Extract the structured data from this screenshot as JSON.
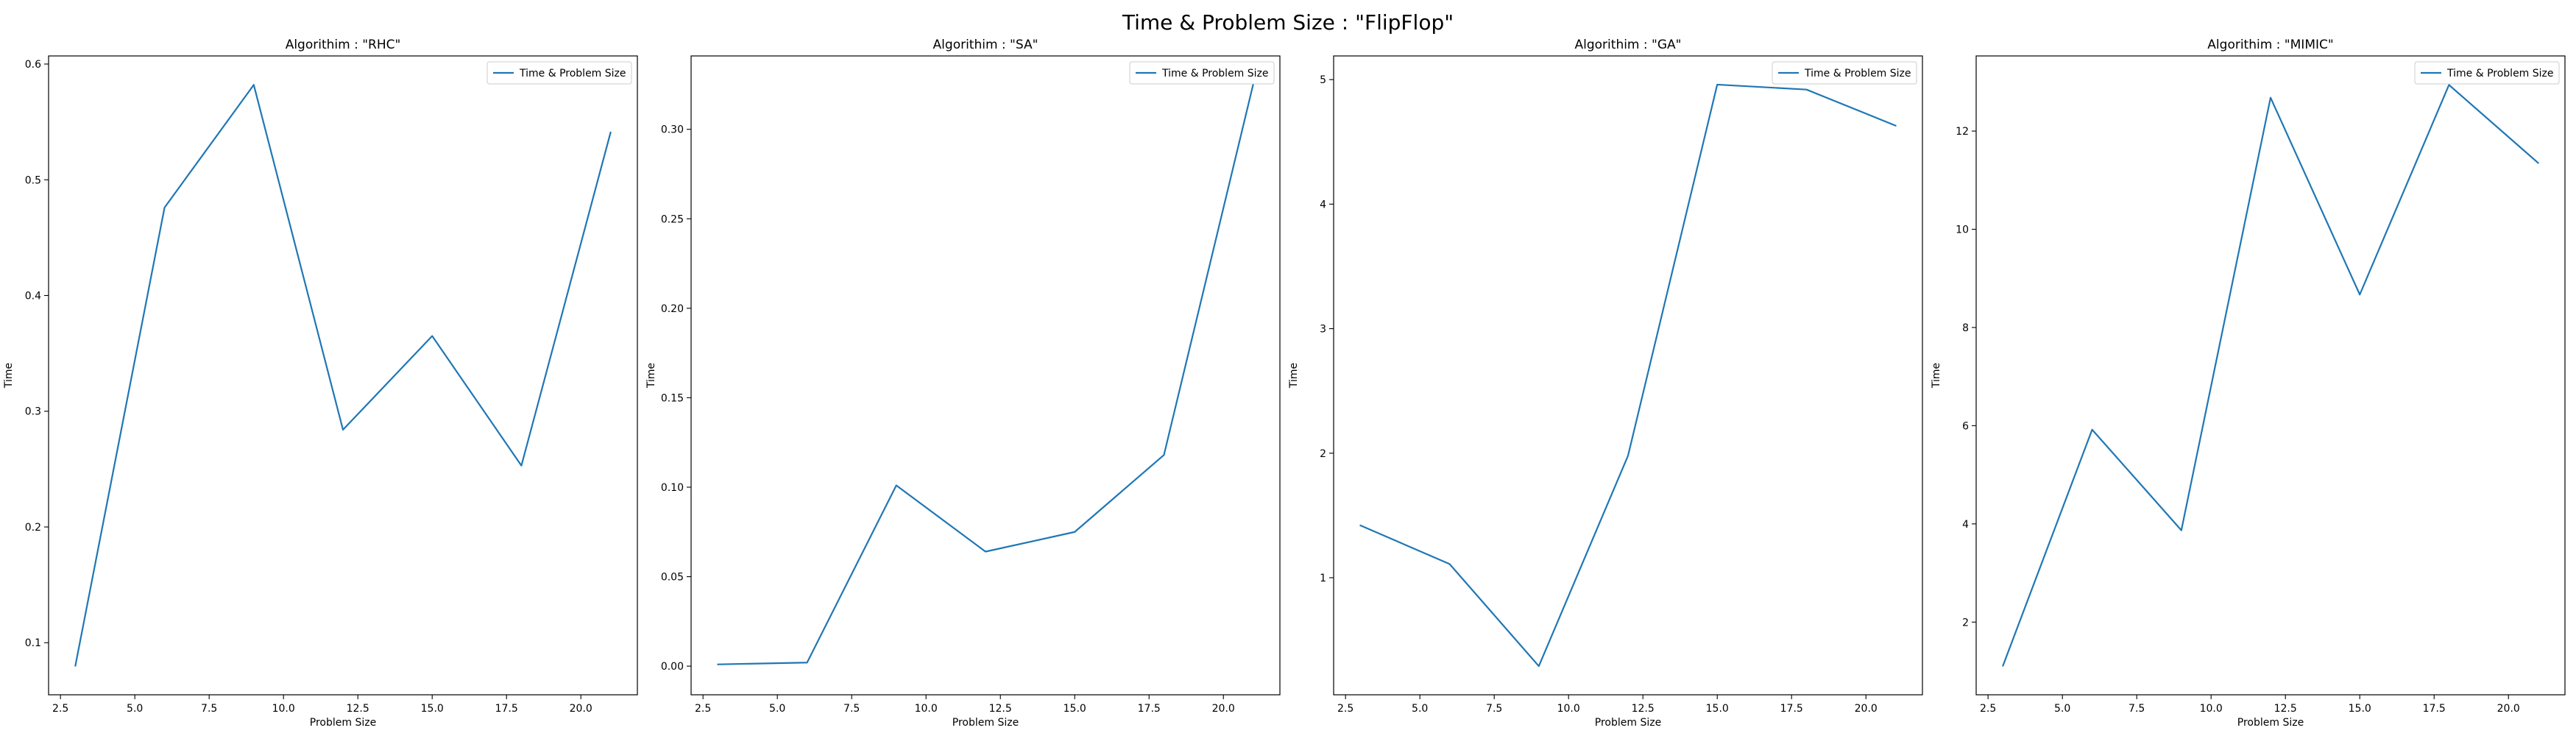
{
  "figure_title": "Time & Problem Size : \"FlipFlop\"",
  "series_color": "#1f77b4",
  "chart_data": [
    {
      "type": "line",
      "title": "Algorithim : \"RHC\"",
      "xlabel": "Problem Size",
      "ylabel": "Time",
      "legend": "top-right",
      "grid": false,
      "xlim": [
        2.1,
        21.9
      ],
      "ylim": [
        0.055,
        0.607
      ],
      "xticks": [
        2.5,
        5.0,
        7.5,
        10.0,
        12.5,
        15.0,
        17.5,
        20.0
      ],
      "xtick_labels": [
        "2.5",
        "5.0",
        "7.5",
        "10.0",
        "12.5",
        "15.0",
        "17.5",
        "20.0"
      ],
      "yticks": [
        0.1,
        0.2,
        0.3,
        0.4,
        0.5,
        0.6
      ],
      "ytick_labels": [
        "0.1",
        "0.2",
        "0.3",
        "0.4",
        "0.5",
        "0.6"
      ],
      "series": [
        {
          "name": "Time & Problem Size",
          "x": [
            3,
            6,
            9,
            12,
            15,
            18,
            21
          ],
          "y": [
            0.08,
            0.476,
            0.582,
            0.284,
            0.365,
            0.253,
            0.541
          ]
        }
      ]
    },
    {
      "type": "line",
      "title": "Algorithim : \"SA\"",
      "xlabel": "Problem Size",
      "ylabel": "Time",
      "legend": "top-right",
      "grid": false,
      "xlim": [
        2.1,
        21.9
      ],
      "ylim": [
        -0.016,
        0.341
      ],
      "xticks": [
        2.5,
        5.0,
        7.5,
        10.0,
        12.5,
        15.0,
        17.5,
        20.0
      ],
      "xtick_labels": [
        "2.5",
        "5.0",
        "7.5",
        "10.0",
        "12.5",
        "15.0",
        "17.5",
        "20.0"
      ],
      "yticks": [
        0.0,
        0.05,
        0.1,
        0.15,
        0.2,
        0.25,
        0.3
      ],
      "ytick_labels": [
        "0.00",
        "0.05",
        "0.10",
        "0.15",
        "0.20",
        "0.25",
        "0.30"
      ],
      "series": [
        {
          "name": "Time & Problem Size",
          "x": [
            3,
            6,
            9,
            12,
            15,
            18,
            21
          ],
          "y": [
            0.001,
            0.002,
            0.101,
            0.064,
            0.075,
            0.118,
            0.325
          ]
        }
      ]
    },
    {
      "type": "line",
      "title": "Algorithim : \"GA\"",
      "xlabel": "Problem Size",
      "ylabel": "Time",
      "legend": "top-right",
      "grid": false,
      "xlim": [
        2.1,
        21.9
      ],
      "ylim": [
        0.06,
        5.19
      ],
      "xticks": [
        2.5,
        5.0,
        7.5,
        10.0,
        12.5,
        15.0,
        17.5,
        20.0
      ],
      "xtick_labels": [
        "2.5",
        "5.0",
        "7.5",
        "10.0",
        "12.5",
        "15.0",
        "17.5",
        "20.0"
      ],
      "yticks": [
        1,
        2,
        3,
        4,
        5
      ],
      "ytick_labels": [
        "1",
        "2",
        "3",
        "4",
        "5"
      ],
      "series": [
        {
          "name": "Time & Problem Size",
          "x": [
            3,
            6,
            9,
            12,
            15,
            18,
            21
          ],
          "y": [
            1.42,
            1.11,
            0.29,
            1.98,
            4.96,
            4.92,
            4.63
          ]
        }
      ]
    },
    {
      "type": "line",
      "title": "Algorithim : \"MIMIC\"",
      "xlabel": "Problem Size",
      "ylabel": "Time",
      "legend": "top-right",
      "grid": false,
      "xlim": [
        2.1,
        21.9
      ],
      "ylim": [
        0.52,
        13.53
      ],
      "xticks": [
        2.5,
        5.0,
        7.5,
        10.0,
        12.5,
        15.0,
        17.5,
        20.0
      ],
      "xtick_labels": [
        "2.5",
        "5.0",
        "7.5",
        "10.0",
        "12.5",
        "15.0",
        "17.5",
        "20.0"
      ],
      "yticks": [
        2,
        4,
        6,
        8,
        10,
        12
      ],
      "ytick_labels": [
        "2",
        "4",
        "6",
        "8",
        "10",
        "12"
      ],
      "series": [
        {
          "name": "Time & Problem Size",
          "x": [
            3,
            6,
            9,
            12,
            15,
            18,
            21
          ],
          "y": [
            1.11,
            5.92,
            3.87,
            12.68,
            8.67,
            12.94,
            11.35
          ]
        }
      ]
    }
  ]
}
